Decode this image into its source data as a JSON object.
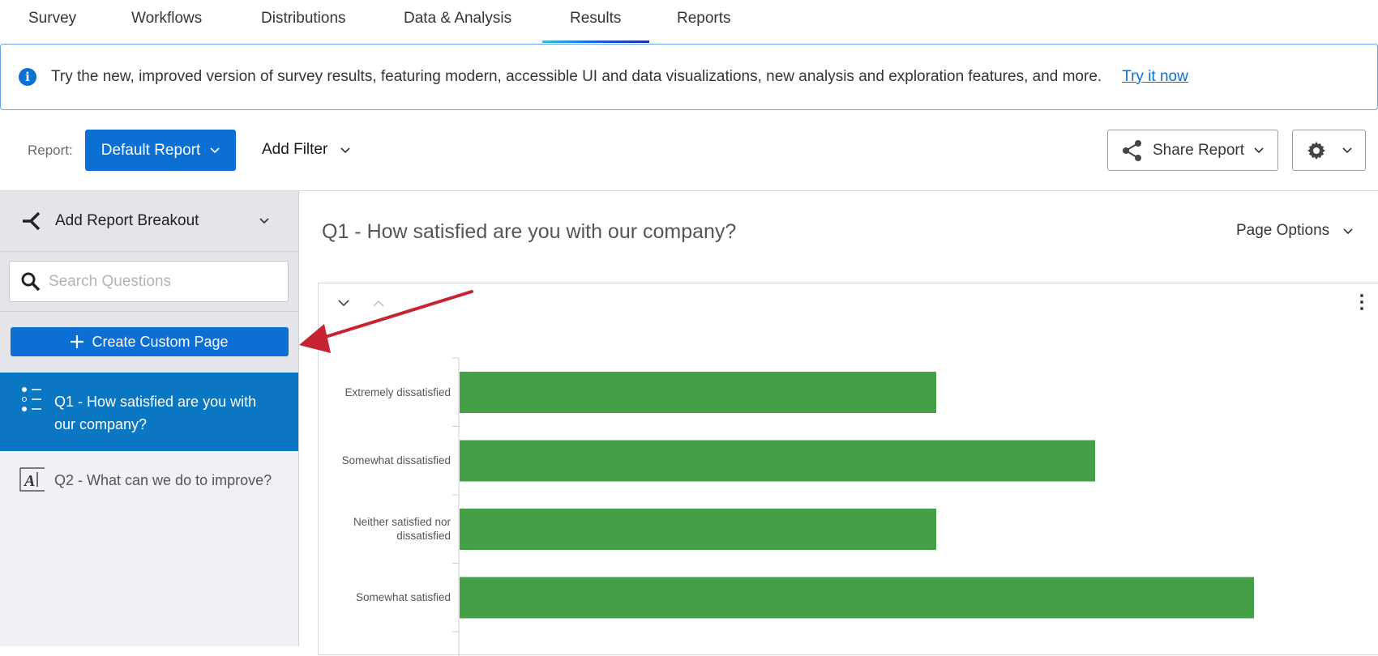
{
  "tabs": [
    {
      "label": "Survey"
    },
    {
      "label": "Workflows"
    },
    {
      "label": "Distributions"
    },
    {
      "label": "Data & Analysis"
    },
    {
      "label": "Results",
      "active": true
    },
    {
      "label": "Reports"
    }
  ],
  "banner": {
    "icon": "info-icon",
    "text": "Try the new, improved version of survey results, featuring modern, accessible UI and data visualizations, new analysis and exploration features, and more.",
    "link": "Try it now"
  },
  "toolbar": {
    "report_label": "Report:",
    "report_value": "Default Report",
    "add_filter": "Add Filter",
    "share": "Share Report",
    "settings_icon": "gear-icon"
  },
  "sidebar": {
    "breakout": "Add Report Breakout",
    "search_placeholder": "Search Questions",
    "create": "Create Custom Page",
    "items": [
      {
        "label": "Q1 - How satisfied are you with our company?",
        "icon": "multiple-choice-icon",
        "selected": true
      },
      {
        "label": "Q2 - What can we do to improve?",
        "icon": "text-entry-icon"
      }
    ]
  },
  "main": {
    "title": "Q1 - How satisfied are you with our company?",
    "page_options": "Page Options"
  },
  "colors": {
    "accent": "#0b6fd4",
    "selected": "#0b77c2",
    "bar": "#43a047",
    "annotation_arrow": "#c62433"
  },
  "chart_data": {
    "type": "bar",
    "orientation": "horizontal",
    "categories": [
      "Extremely dissatisfied",
      "Somewhat dissatisfied",
      "Neither satisfied nor dissatisfied",
      "Somewhat satisfied"
    ],
    "values": [
      3,
      4,
      3,
      5
    ],
    "xlim": [
      0,
      5.5
    ]
  }
}
